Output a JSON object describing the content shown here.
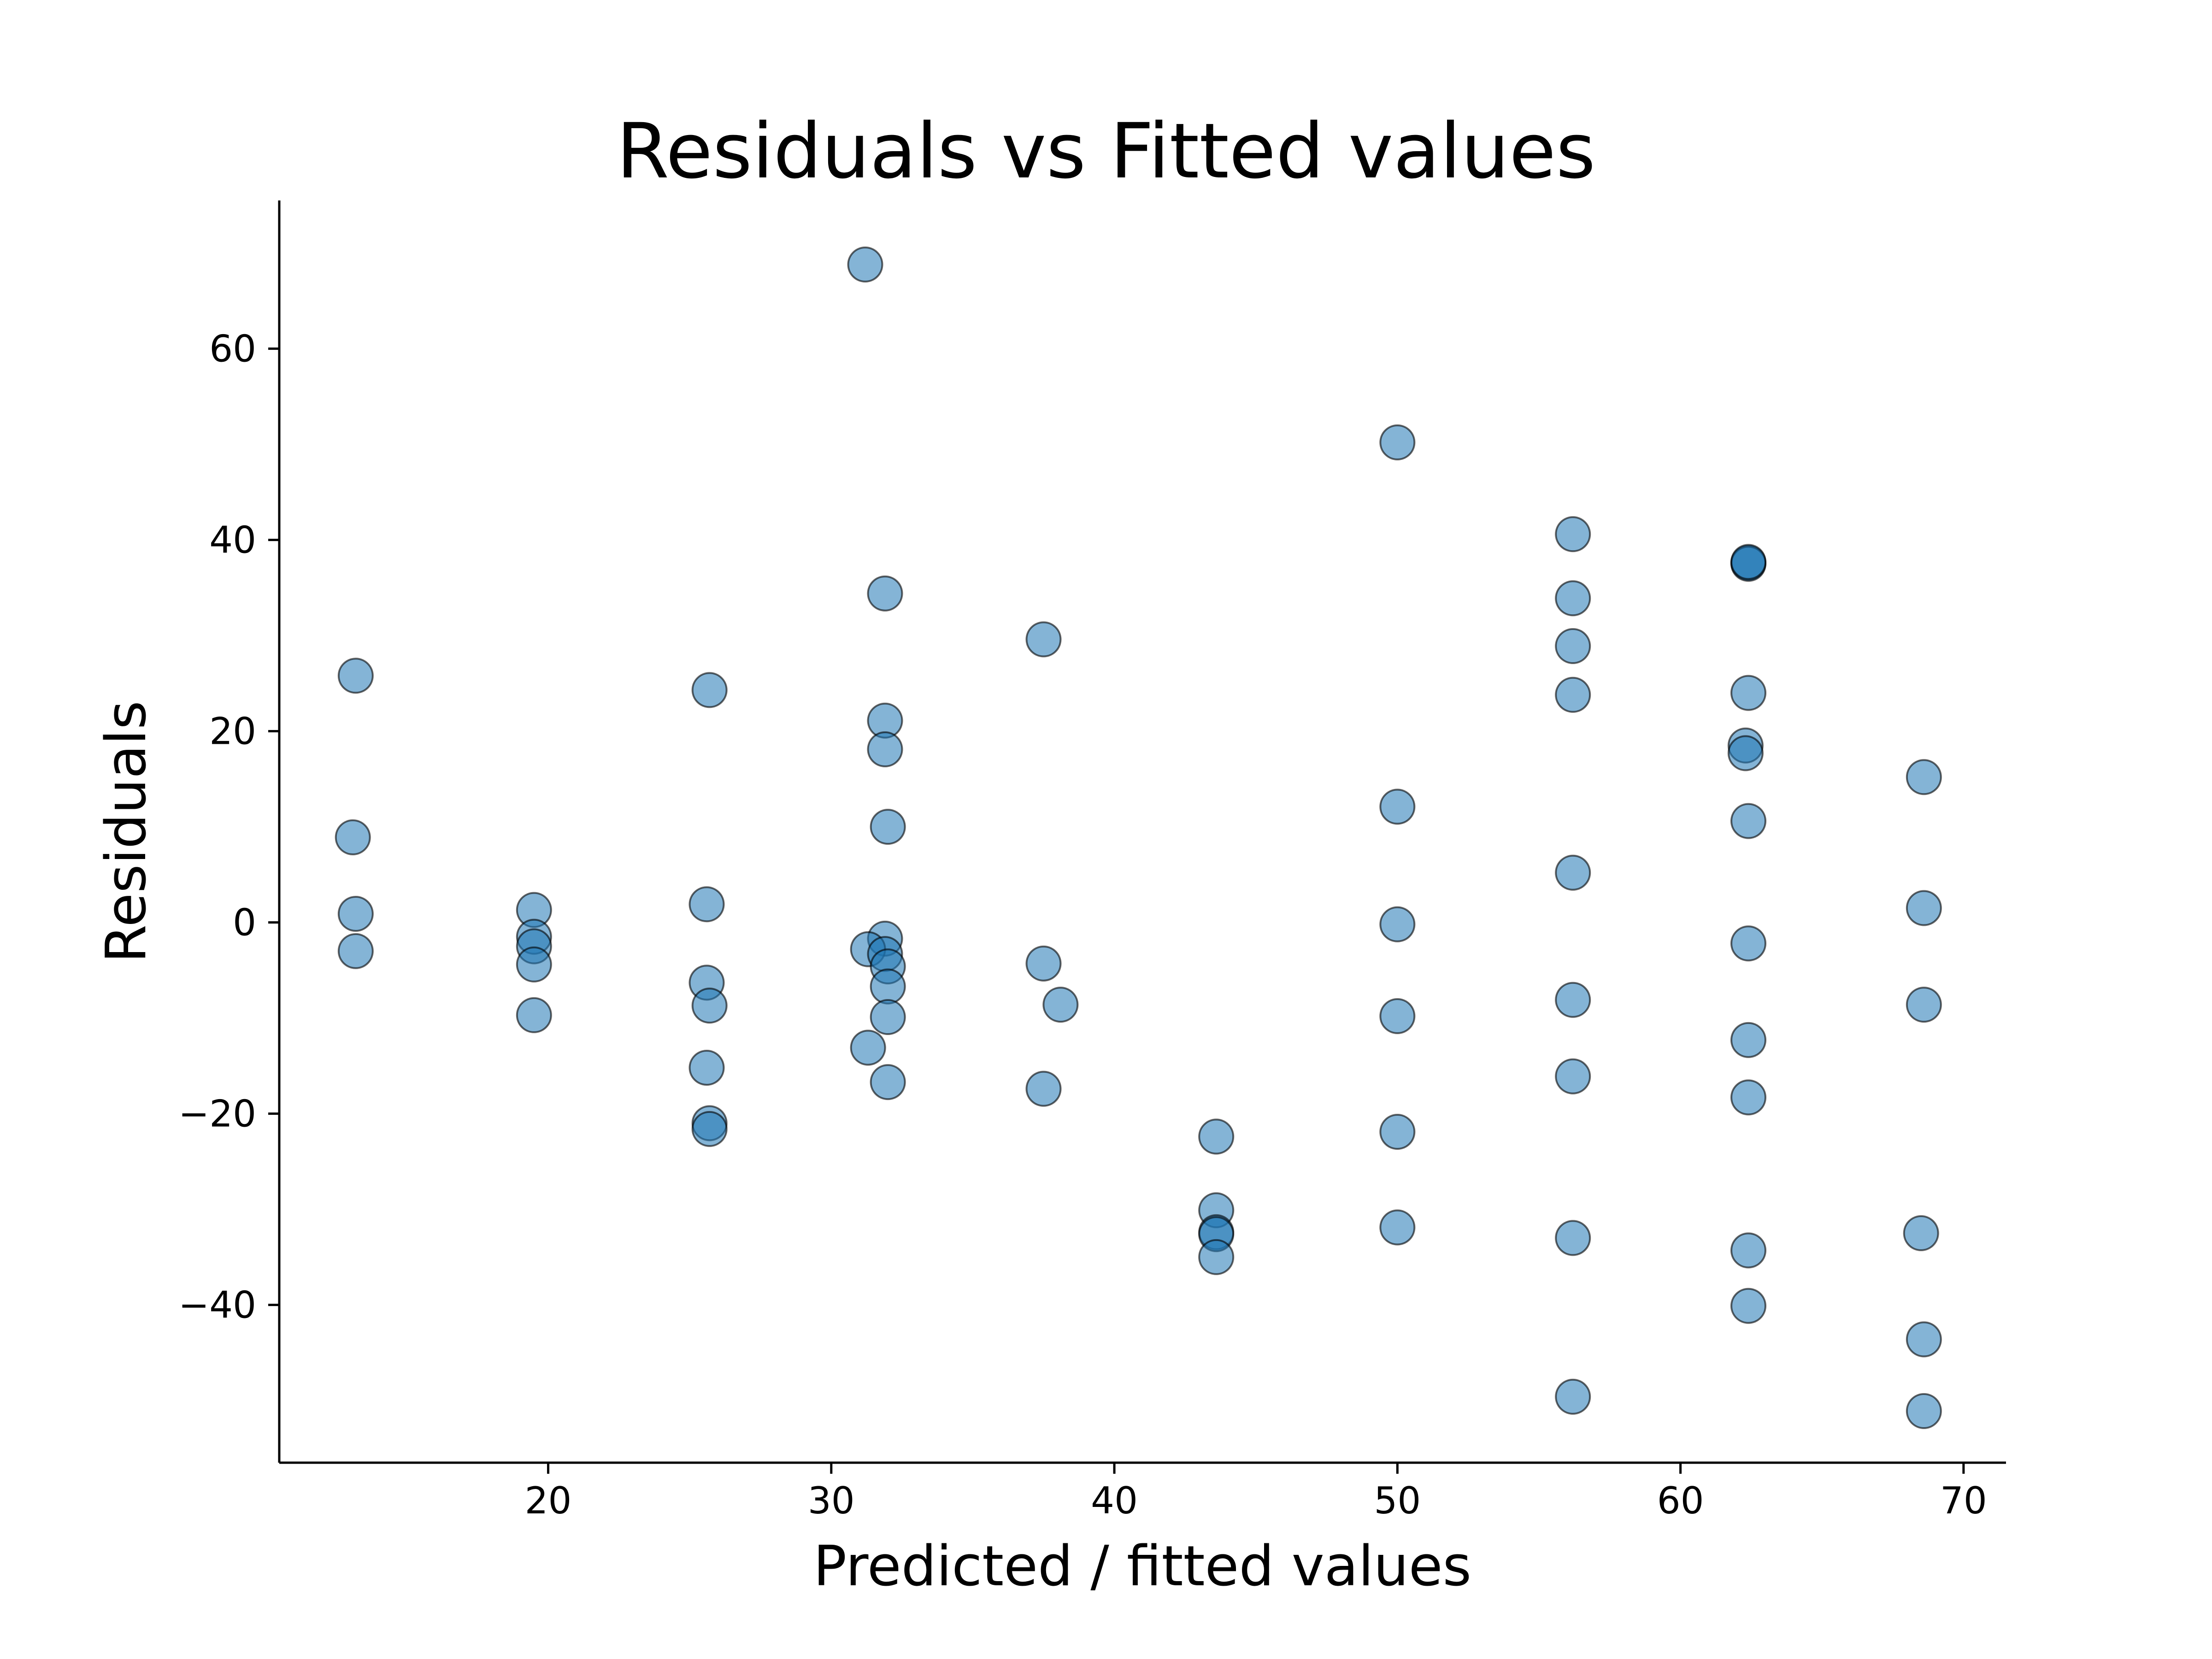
{
  "chart_data": {
    "type": "scatter",
    "title": "Residuals vs Fitted values",
    "xlabel": "Predicted / fitted values",
    "ylabel": "Residuals",
    "xlim": [
      10.5,
      71.5
    ],
    "ylim": [
      -56.5,
      75.5
    ],
    "xticks": [
      20,
      30,
      40,
      50,
      60,
      70
    ],
    "yticks": [
      -40,
      -20,
      0,
      20,
      40,
      60
    ],
    "xtick_labels": [
      "20",
      "30",
      "40",
      "50",
      "60",
      "70"
    ],
    "ytick_labels": [
      "−40",
      "−20",
      "0",
      "20",
      "40",
      "60"
    ],
    "grid": false,
    "legend": "none",
    "marker_color": "#1f77b4",
    "marker_alpha": 0.55,
    "marker_edge_color": "#000000",
    "points": [
      {
        "x": 13.2,
        "y": 25.8
      },
      {
        "x": 13.1,
        "y": 8.9
      },
      {
        "x": 13.2,
        "y": 0.9
      },
      {
        "x": 13.2,
        "y": -3.0
      },
      {
        "x": 19.5,
        "y": 1.3
      },
      {
        "x": 19.5,
        "y": -1.5
      },
      {
        "x": 19.5,
        "y": -2.5
      },
      {
        "x": 19.5,
        "y": -4.4
      },
      {
        "x": 19.5,
        "y": -9.7
      },
      {
        "x": 25.7,
        "y": 24.3
      },
      {
        "x": 25.6,
        "y": 1.9
      },
      {
        "x": 25.6,
        "y": -6.3
      },
      {
        "x": 25.7,
        "y": -8.7
      },
      {
        "x": 25.6,
        "y": -15.2
      },
      {
        "x": 25.7,
        "y": -21.0
      },
      {
        "x": 25.7,
        "y": -21.6
      },
      {
        "x": 31.2,
        "y": 68.8
      },
      {
        "x": 31.9,
        "y": 34.4
      },
      {
        "x": 31.9,
        "y": 21.1
      },
      {
        "x": 31.9,
        "y": 18.1
      },
      {
        "x": 32.0,
        "y": 10.0
      },
      {
        "x": 31.9,
        "y": -1.7
      },
      {
        "x": 31.3,
        "y": -2.8
      },
      {
        "x": 31.9,
        "y": -3.3
      },
      {
        "x": 32.0,
        "y": -4.6
      },
      {
        "x": 32.0,
        "y": -6.7
      },
      {
        "x": 32.0,
        "y": -9.9
      },
      {
        "x": 31.3,
        "y": -13.1
      },
      {
        "x": 32.0,
        "y": -16.7
      },
      {
        "x": 37.5,
        "y": 29.6
      },
      {
        "x": 37.5,
        "y": -4.3
      },
      {
        "x": 38.1,
        "y": -8.6
      },
      {
        "x": 37.5,
        "y": -17.4
      },
      {
        "x": 43.6,
        "y": -22.4
      },
      {
        "x": 43.6,
        "y": -30.1
      },
      {
        "x": 43.6,
        "y": -32.4
      },
      {
        "x": 43.6,
        "y": -32.6
      },
      {
        "x": 43.6,
        "y": -35.0
      },
      {
        "x": 50.0,
        "y": 50.2
      },
      {
        "x": 50.0,
        "y": 12.1
      },
      {
        "x": 50.0,
        "y": -0.2
      },
      {
        "x": 50.0,
        "y": -9.8
      },
      {
        "x": 50.0,
        "y": -21.9
      },
      {
        "x": 50.0,
        "y": -31.9
      },
      {
        "x": 56.2,
        "y": 40.6
      },
      {
        "x": 56.2,
        "y": 33.9
      },
      {
        "x": 56.2,
        "y": 28.9
      },
      {
        "x": 56.2,
        "y": 23.8
      },
      {
        "x": 56.2,
        "y": 5.2
      },
      {
        "x": 56.2,
        "y": -8.1
      },
      {
        "x": 56.2,
        "y": -16.1
      },
      {
        "x": 56.2,
        "y": -33.0
      },
      {
        "x": 56.2,
        "y": -49.6
      },
      {
        "x": 62.4,
        "y": 37.6
      },
      {
        "x": 62.4,
        "y": 37.5
      },
      {
        "x": 62.4,
        "y": 37.7
      },
      {
        "x": 62.4,
        "y": 24.0
      },
      {
        "x": 62.3,
        "y": 18.5
      },
      {
        "x": 62.3,
        "y": 17.7
      },
      {
        "x": 62.4,
        "y": 10.6
      },
      {
        "x": 62.4,
        "y": -2.2
      },
      {
        "x": 62.4,
        "y": -12.3
      },
      {
        "x": 62.4,
        "y": -18.3
      },
      {
        "x": 62.4,
        "y": -34.3
      },
      {
        "x": 62.4,
        "y": -40.1
      },
      {
        "x": 68.6,
        "y": 15.2
      },
      {
        "x": 68.6,
        "y": 1.5
      },
      {
        "x": 68.6,
        "y": -8.6
      },
      {
        "x": 68.5,
        "y": -32.5
      },
      {
        "x": 68.6,
        "y": -43.6
      },
      {
        "x": 68.6,
        "y": -51.1
      }
    ]
  }
}
